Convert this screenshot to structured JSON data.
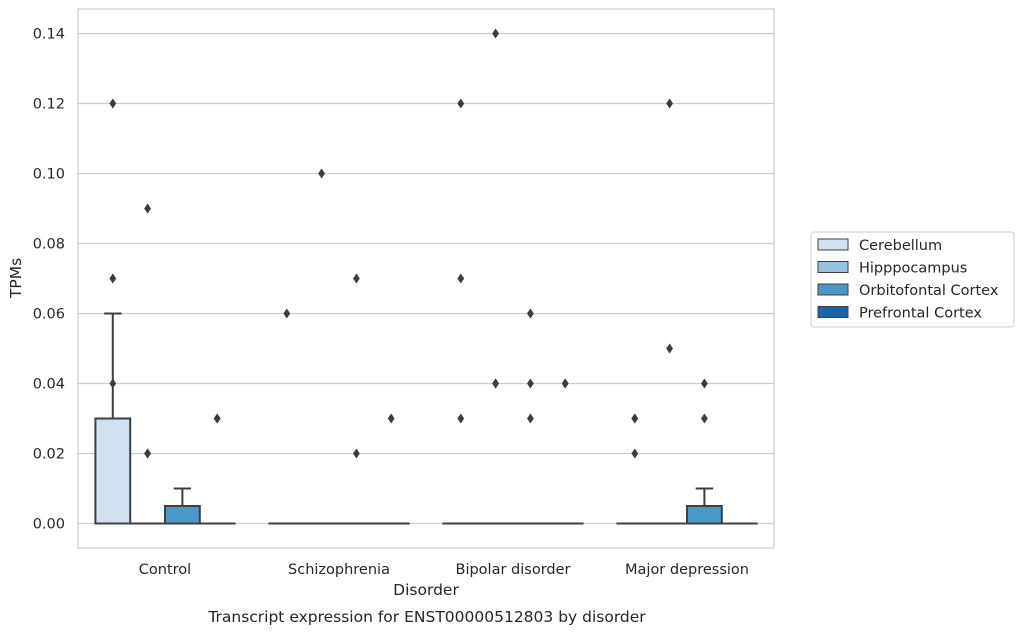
{
  "chart_data": {
    "type": "box",
    "title": "Transcript expression for ENST00000512803 by disorder",
    "xlabel": "Disorder",
    "ylabel": "TPMs",
    "ylim": [
      -0.007,
      0.147
    ],
    "yticks": [
      0.0,
      0.02,
      0.04,
      0.06,
      0.08,
      0.1,
      0.12,
      0.14
    ],
    "ytick_labels": [
      "0.00",
      "0.02",
      "0.04",
      "0.06",
      "0.08",
      "0.10",
      "0.12",
      "0.14"
    ],
    "categories": [
      "Control",
      "Schizophrenia",
      "Bipolar disorder",
      "Major depression"
    ],
    "grid": true,
    "legend_position": "right",
    "series": [
      {
        "name": "Cerebellum",
        "color": "#d0e1f2",
        "boxes": [
          {
            "q1": 0.0,
            "median": 0.0,
            "q3": 0.03,
            "whisker_low": 0.0,
            "whisker_high": 0.06,
            "outliers": [
              0.12,
              0.07,
              0.04
            ]
          },
          {
            "q1": 0.0,
            "median": 0.0,
            "q3": 0.0,
            "whisker_low": 0.0,
            "whisker_high": 0.0,
            "outliers": [
              0.06
            ]
          },
          {
            "q1": 0.0,
            "median": 0.0,
            "q3": 0.0,
            "whisker_low": 0.0,
            "whisker_high": 0.0,
            "outliers": [
              0.12,
              0.07,
              0.03
            ]
          },
          {
            "q1": 0.0,
            "median": 0.0,
            "q3": 0.0,
            "whisker_low": 0.0,
            "whisker_high": 0.0,
            "outliers": [
              0.03,
              0.03,
              0.02
            ]
          }
        ]
      },
      {
        "name": "Hipppocampus",
        "color": "#94c4df",
        "boxes": [
          {
            "q1": 0.0,
            "median": 0.0,
            "q3": 0.0,
            "whisker_low": 0.0,
            "whisker_high": 0.0,
            "outliers": [
              0.09,
              0.02,
              0.02
            ]
          },
          {
            "q1": 0.0,
            "median": 0.0,
            "q3": 0.0,
            "whisker_low": 0.0,
            "whisker_high": 0.0,
            "outliers": [
              0.1
            ]
          },
          {
            "q1": 0.0,
            "median": 0.0,
            "q3": 0.0,
            "whisker_low": 0.0,
            "whisker_high": 0.0,
            "outliers": [
              0.14,
              0.04,
              0.04
            ]
          },
          {
            "q1": 0.0,
            "median": 0.0,
            "q3": 0.0,
            "whisker_low": 0.0,
            "whisker_high": 0.0,
            "outliers": [
              0.12,
              0.05
            ]
          }
        ]
      },
      {
        "name": "Orbitofontal Cortex",
        "color": "#4a98c9",
        "boxes": [
          {
            "q1": 0.0,
            "median": 0.0,
            "q3": 0.005,
            "whisker_low": 0.0,
            "whisker_high": 0.01,
            "outliers": []
          },
          {
            "q1": 0.0,
            "median": 0.0,
            "q3": 0.0,
            "whisker_low": 0.0,
            "whisker_high": 0.0,
            "outliers": [
              0.07,
              0.02
            ]
          },
          {
            "q1": 0.0,
            "median": 0.0,
            "q3": 0.0,
            "whisker_low": 0.0,
            "whisker_high": 0.0,
            "outliers": [
              0.06,
              0.04,
              0.03
            ]
          },
          {
            "q1": 0.0,
            "median": 0.0,
            "q3": 0.005,
            "whisker_low": 0.0,
            "whisker_high": 0.01,
            "outliers": [
              0.04,
              0.03
            ]
          }
        ]
      },
      {
        "name": "Prefrontal Cortex",
        "color": "#1764ab",
        "boxes": [
          {
            "q1": 0.0,
            "median": 0.0,
            "q3": 0.0,
            "whisker_low": 0.0,
            "whisker_high": 0.0,
            "outliers": [
              0.03,
              0.03
            ]
          },
          {
            "q1": 0.0,
            "median": 0.0,
            "q3": 0.0,
            "whisker_low": 0.0,
            "whisker_high": 0.0,
            "outliers": [
              0.03
            ]
          },
          {
            "q1": 0.0,
            "median": 0.0,
            "q3": 0.0,
            "whisker_low": 0.0,
            "whisker_high": 0.0,
            "outliers": [
              0.04,
              0.04
            ]
          },
          {
            "q1": 0.0,
            "median": 0.0,
            "q3": 0.0,
            "whisker_low": 0.0,
            "whisker_high": 0.0,
            "outliers": []
          }
        ]
      }
    ]
  }
}
